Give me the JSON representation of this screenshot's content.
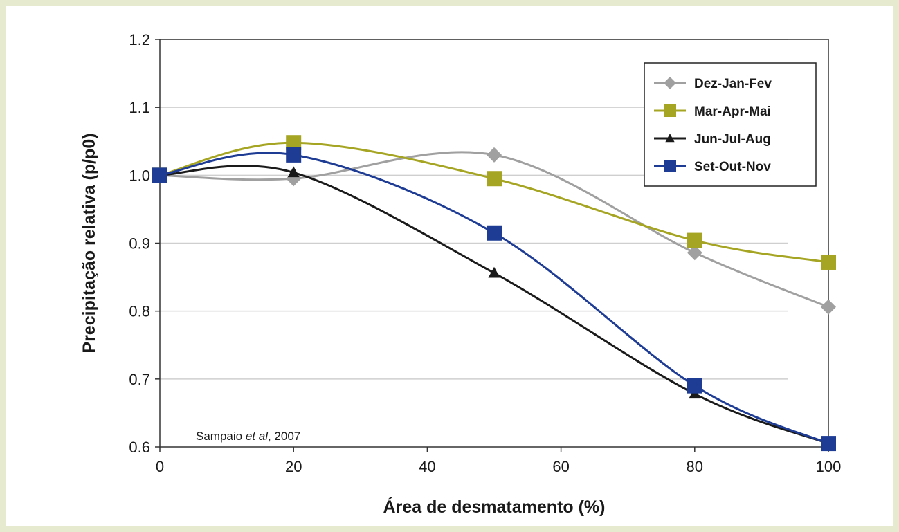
{
  "chart_data": {
    "type": "line",
    "xlabel": "Área de desmatamento (%)",
    "ylabel": "Precipitação relativa (p/p0)",
    "xlim": [
      0,
      100
    ],
    "ylim": [
      0.6,
      1.2
    ],
    "xticks": [
      0,
      20,
      40,
      60,
      80,
      100
    ],
    "yticks": [
      0.6,
      0.7,
      0.8,
      0.9,
      1.0,
      1.1,
      1.2
    ],
    "ytick_labels": [
      "0.6",
      "0.7",
      "0.8",
      "0.9",
      "1.0",
      "1.1",
      "1.2"
    ],
    "grid": "horizontal",
    "legend_position": "top-right",
    "source_note": {
      "author": "Sampaio",
      "etal": "et al",
      "year": ", 2007"
    },
    "series": [
      {
        "name": "Dez-Jan-Fev",
        "marker": "diamond",
        "color": "#a0a0a0",
        "x": [
          0,
          20,
          50,
          80,
          100
        ],
        "y": [
          1.0,
          0.995,
          1.03,
          0.886,
          0.806
        ]
      },
      {
        "name": "Mar-Apr-Mai",
        "marker": "square",
        "color": "#a6a523",
        "x": [
          0,
          20,
          50,
          80,
          100
        ],
        "y": [
          1.0,
          1.048,
          0.995,
          0.904,
          0.872
        ]
      },
      {
        "name": "Jun-Jul-Aug",
        "marker": "triangle",
        "color": "#1a1a1a",
        "x": [
          0,
          20,
          50,
          80,
          100
        ],
        "y": [
          1.0,
          1.004,
          0.856,
          0.678,
          0.605
        ]
      },
      {
        "name": "Set-Out-Nov",
        "marker": "square",
        "color": "#1e3c94",
        "x": [
          0,
          20,
          50,
          80,
          100
        ],
        "y": [
          1.0,
          1.03,
          0.915,
          0.69,
          0.605
        ]
      }
    ]
  }
}
